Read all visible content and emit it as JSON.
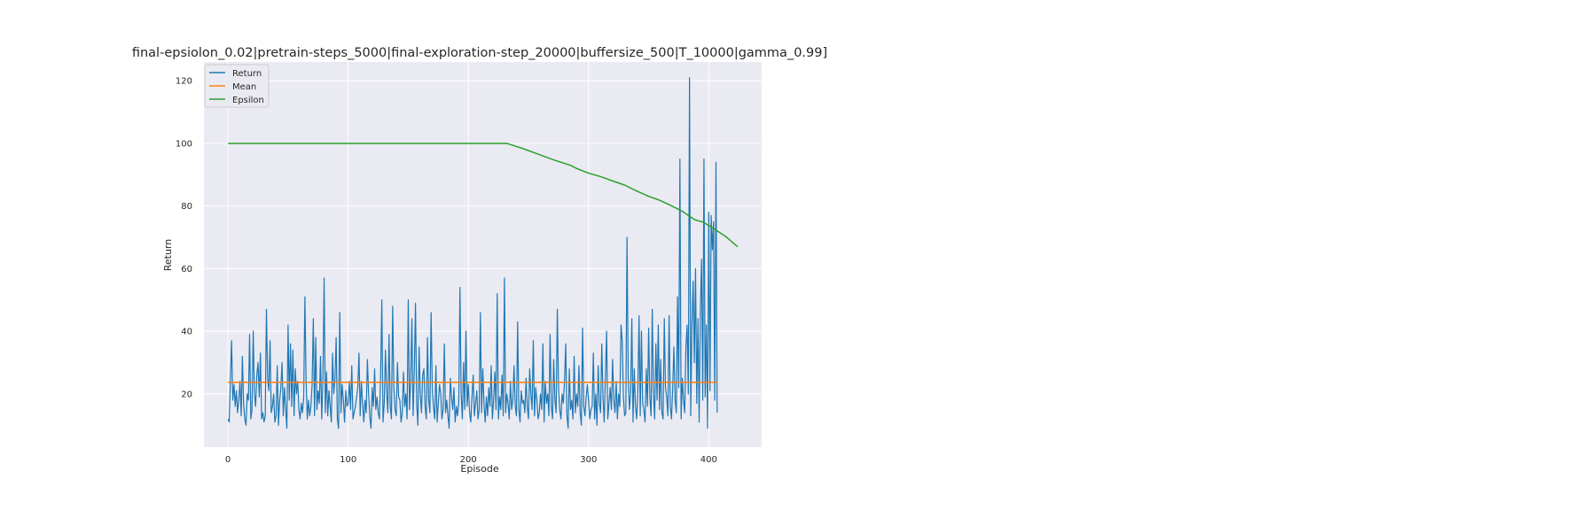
{
  "chart_data": {
    "type": "line",
    "title": "final-epsiolon_0.02|pretrain-steps_5000|final-exploration-step_20000|buffersize_500|T_10000|gamma_0.99]",
    "xlabel": "Episode",
    "ylabel": "Return",
    "xlim": [
      -20,
      444
    ],
    "ylim": [
      3,
      126
    ],
    "xticks": [
      0,
      100,
      200,
      300,
      400
    ],
    "yticks": [
      20,
      40,
      60,
      80,
      100,
      120
    ],
    "grid": true,
    "legend": "top-left",
    "series": [
      {
        "name": "Return",
        "color": "#1f77b4",
        "values": [
          12,
          11,
          24,
          37,
          18,
          23,
          16,
          21,
          14,
          18,
          24,
          13,
          32,
          17,
          12,
          10,
          20,
          18,
          39,
          12,
          15,
          40,
          20,
          16,
          26,
          30,
          19,
          33,
          12,
          14,
          11,
          13,
          47,
          25,
          21,
          37,
          14,
          16,
          20,
          11,
          13,
          29,
          10,
          18,
          22,
          30,
          13,
          22,
          15,
          9,
          42,
          18,
          36,
          16,
          34,
          13,
          28,
          20,
          24,
          15,
          12,
          17,
          14,
          19,
          51,
          24,
          12,
          18,
          13,
          16,
          23,
          44,
          13,
          38,
          15,
          21,
          17,
          32,
          12,
          25,
          57,
          14,
          27,
          13,
          21,
          16,
          11,
          33,
          20,
          25,
          38,
          12,
          9,
          46,
          14,
          23,
          18,
          11,
          21,
          16,
          17,
          24,
          15,
          29,
          12,
          14,
          16,
          19,
          22,
          33,
          13,
          24,
          17,
          11,
          18,
          14,
          31,
          20,
          13,
          9,
          22,
          16,
          28,
          15,
          19,
          14,
          12,
          26,
          50,
          11,
          17,
          34,
          21,
          14,
          39,
          16,
          12,
          48,
          22,
          15,
          13,
          30,
          19,
          18,
          11,
          14,
          27,
          16,
          20,
          12,
          50,
          15,
          24,
          44,
          13,
          27,
          49,
          17,
          10,
          35,
          20,
          14,
          26,
          28,
          16,
          12,
          38,
          18,
          14,
          46,
          21,
          16,
          12,
          29,
          11,
          17,
          23,
          20,
          12,
          15,
          36,
          14,
          18,
          13,
          9,
          25,
          19,
          15,
          22,
          11,
          16,
          13,
          17,
          54,
          20,
          12,
          30,
          15,
          40,
          16,
          23,
          14,
          11,
          19,
          26,
          13,
          17,
          21,
          12,
          15,
          46,
          14,
          28,
          17,
          11,
          19,
          13,
          22,
          16,
          29,
          12,
          18,
          27,
          15,
          52,
          12,
          19,
          15,
          26,
          13,
          57,
          14,
          20,
          17,
          12,
          24,
          15,
          18,
          29,
          16,
          13,
          43,
          15,
          11,
          21,
          17,
          18,
          14,
          25,
          16,
          12,
          28,
          20,
          15,
          37,
          13,
          22,
          18,
          12,
          14,
          20,
          15,
          36,
          11,
          24,
          17,
          20,
          13,
          39,
          16,
          12,
          31,
          18,
          14,
          47,
          22,
          15,
          12,
          20,
          17,
          24,
          36,
          13,
          9,
          28,
          15,
          18,
          12,
          32,
          14,
          20,
          16,
          29,
          14,
          10,
          41,
          16,
          13,
          19,
          23,
          18,
          12,
          15,
          16,
          33,
          12,
          20,
          10,
          29,
          17,
          14,
          36,
          19,
          11,
          25,
          40,
          12,
          17,
          22,
          15,
          31,
          18,
          14,
          24,
          12,
          20,
          16,
          42,
          37,
          19,
          13,
          14,
          70,
          25,
          15,
          20,
          44,
          11,
          28,
          16,
          12,
          21,
          45,
          13,
          40,
          17,
          15,
          11,
          28,
          16,
          41,
          19,
          13,
          47,
          20,
          12,
          36,
          18,
          42,
          15,
          31,
          14,
          12,
          44,
          22,
          19,
          13,
          45,
          16,
          12,
          22,
          35,
          18,
          14,
          51,
          22,
          95,
          12,
          25,
          18,
          14,
          35,
          42,
          20,
          121,
          13,
          42,
          56,
          30,
          60,
          17,
          44,
          11,
          46,
          63,
          18,
          95,
          19,
          42,
          9,
          78,
          21,
          77,
          66,
          75,
          18,
          94,
          14
        ]
      },
      {
        "name": "Mean",
        "color": "#ff7f0e",
        "values": [
          23.7,
          23.7
        ]
      },
      {
        "name": "Epsilon",
        "color": "#2ca02c",
        "knots": [
          [
            0,
            100
          ],
          [
            232,
            100
          ],
          [
            236,
            99.5
          ],
          [
            245,
            98.4
          ],
          [
            255,
            97
          ],
          [
            262,
            96
          ],
          [
            272,
            94.6
          ],
          [
            285,
            93
          ],
          [
            290,
            92
          ],
          [
            300,
            90.5
          ],
          [
            310,
            89.4
          ],
          [
            320,
            88
          ],
          [
            330,
            86.7
          ],
          [
            340,
            84.8
          ],
          [
            350,
            83.1
          ],
          [
            358,
            82
          ],
          [
            365,
            80.8
          ],
          [
            372,
            79.5
          ],
          [
            378,
            78.3
          ],
          [
            383,
            77
          ],
          [
            388,
            75.7
          ],
          [
            392,
            75.2
          ],
          [
            395,
            74.9
          ],
          [
            400,
            73.8
          ],
          [
            405,
            72.6
          ],
          [
            410,
            71.3
          ],
          [
            415,
            70
          ],
          [
            420,
            68.3
          ],
          [
            424,
            67
          ]
        ]
      }
    ]
  }
}
